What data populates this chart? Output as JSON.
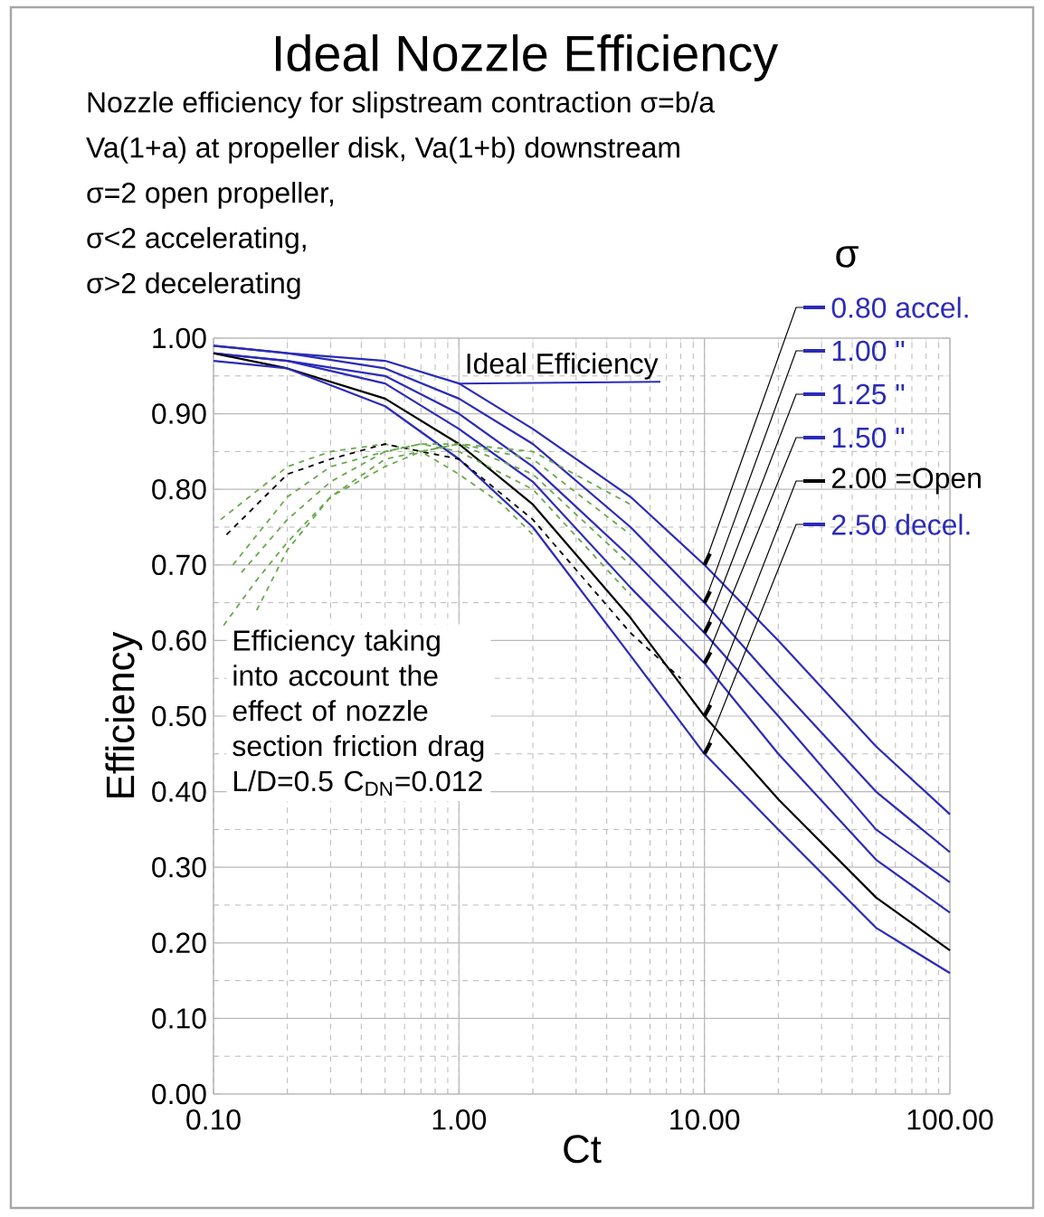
{
  "chart_data": {
    "type": "line",
    "title": "Ideal Nozzle Efficiency",
    "subtitle": "Nozzle efficiency for slipstream contraction σ=b/a",
    "annotations": [
      "Va(1+a) at propeller disk, Va(1+b) downstream",
      "σ=2 open propeller,",
      "σ<2 accelerating,",
      "σ>2 decelerating",
      "Efficiency taking into account the effect of nozzle section friction drag  L/D=0.5 C$_{DN}$=0.012",
      {
        "text": "Ideal Efficiency",
        "x": 1,
        "y": 0.94
      }
    ],
    "legend_title": "σ",
    "xlabel": "Ct",
    "ylabel": "Efficiency",
    "log": "x",
    "grid": true,
    "legend": "top right",
    "xlim": [
      0.1,
      100
    ],
    "ylim": [
      0,
      1
    ],
    "xticks": [
      {
        "value": 0.1,
        "label": "0.10"
      },
      {
        "value": 1,
        "label": "1.00"
      },
      {
        "value": 10,
        "label": "10.00"
      },
      {
        "value": 100,
        "label": "100.00"
      }
    ],
    "yticks": [
      {
        "value": 0,
        "label": "0.00"
      },
      {
        "value": 0.1,
        "label": "0.10"
      },
      {
        "value": 0.2,
        "label": "0.20"
      },
      {
        "value": 0.3,
        "label": "0.30"
      },
      {
        "value": 0.4,
        "label": "0.40"
      },
      {
        "value": 0.5,
        "label": "0.50"
      },
      {
        "value": 0.6,
        "label": "0.60"
      },
      {
        "value": 0.7,
        "label": "0.70"
      },
      {
        "value": 0.8,
        "label": "0.80"
      },
      {
        "value": 0.9,
        "label": "0.90"
      },
      {
        "value": 1,
        "label": "1.00"
      }
    ],
    "x": [
      0.1,
      0.2,
      0.5,
      1,
      2,
      5,
      10,
      20,
      50,
      100
    ],
    "series": [
      {
        "name": "0.80 accel.",
        "color": "#2b2bb8",
        "line_style": "solid",
        "values": [
          0.99,
          0.98,
          0.97,
          0.94,
          0.88,
          0.79,
          0.7,
          0.6,
          0.46,
          0.37
        ]
      },
      {
        "name": "1.00    \"",
        "color": "#2b2bb8",
        "line_style": "solid",
        "values": [
          0.99,
          0.98,
          0.96,
          0.92,
          0.86,
          0.75,
          0.65,
          0.54,
          0.4,
          0.32
        ]
      },
      {
        "name": "1.25    \"",
        "color": "#2b2bb8",
        "line_style": "solid",
        "values": [
          0.98,
          0.97,
          0.95,
          0.9,
          0.83,
          0.71,
          0.61,
          0.5,
          0.35,
          0.28
        ]
      },
      {
        "name": "1.50    \"",
        "color": "#2b2bb8",
        "line_style": "solid",
        "values": [
          0.98,
          0.97,
          0.94,
          0.88,
          0.81,
          0.67,
          0.57,
          0.45,
          0.31,
          0.24
        ]
      },
      {
        "name": "2.00 =Open",
        "color": "#000000",
        "line_style": "solid",
        "values": [
          0.98,
          0.96,
          0.92,
          0.86,
          0.78,
          0.63,
          0.5,
          0.39,
          0.26,
          0.19
        ]
      },
      {
        "name": "2.50 decel.",
        "color": "#2b2bb8",
        "line_style": "solid",
        "values": [
          0.97,
          0.96,
          0.91,
          0.84,
          0.75,
          0.58,
          0.45,
          0.35,
          0.22,
          0.16
        ]
      },
      {
        "color": "#6aa84f",
        "line_style": "dashed",
        "x": [
          0.107,
          0.2,
          0.3,
          0.5,
          0.7,
          1,
          1.5,
          2
        ],
        "values": [
          0.76,
          0.83,
          0.85,
          0.86,
          0.85,
          0.82,
          0.78,
          0.74
        ]
      },
      {
        "color": "#000000",
        "line_style": "dashed",
        "x": [
          0.113,
          0.2,
          0.3,
          0.5,
          0.7,
          1,
          2,
          5,
          8
        ],
        "values": [
          0.74,
          0.82,
          0.84,
          0.86,
          0.85,
          0.84,
          0.76,
          0.61,
          0.55
        ]
      },
      {
        "color": "#6aa84f",
        "line_style": "dashed",
        "x": [
          0.12,
          0.2,
          0.3,
          0.5,
          0.7,
          1,
          2,
          5
        ],
        "values": [
          0.7,
          0.79,
          0.83,
          0.85,
          0.86,
          0.85,
          0.8,
          0.66
        ]
      },
      {
        "color": "#6aa84f",
        "line_style": "dashed",
        "x": [
          0.13,
          0.2,
          0.3,
          0.5,
          0.7,
          1,
          2,
          5
        ],
        "values": [
          0.69,
          0.76,
          0.81,
          0.85,
          0.86,
          0.86,
          0.82,
          0.7
        ]
      },
      {
        "color": "#6aa84f",
        "line_style": "dashed",
        "x": [
          0.15,
          0.2,
          0.3,
          0.5,
          0.7,
          1,
          2,
          5
        ],
        "values": [
          0.64,
          0.72,
          0.79,
          0.84,
          0.85,
          0.86,
          0.84,
          0.74
        ]
      },
      {
        "color": "#6aa84f",
        "line_style": "dashed",
        "x": [
          0.11,
          0.15,
          0.2,
          0.3,
          0.5,
          0.7,
          1,
          2,
          5
        ],
        "values": [
          0.62,
          0.68,
          0.73,
          0.79,
          0.83,
          0.85,
          0.86,
          0.85,
          0.78
        ]
      }
    ]
  }
}
